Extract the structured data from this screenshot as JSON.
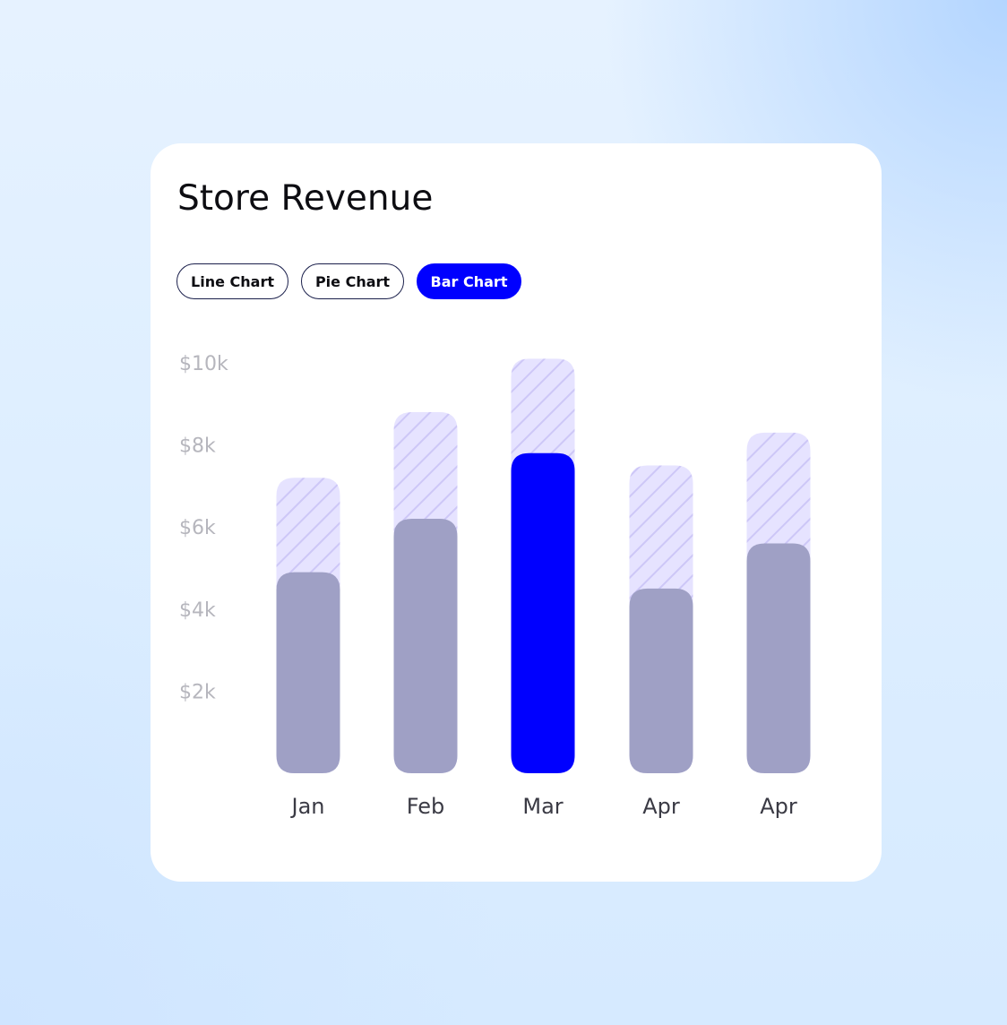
{
  "card": {
    "title": "Store Revenue"
  },
  "tabs": [
    {
      "label": "Line Chart",
      "active": false
    },
    {
      "label": "Pie Chart",
      "active": false
    },
    {
      "label": "Bar Chart",
      "active": true
    }
  ],
  "colors": {
    "accent": "#0000ff",
    "bar": "#9fa0c5",
    "target_fill": "#e6e3ff",
    "target_hatch": "#cdc7f7",
    "axis_text": "#b6b6bd",
    "label_text": "#3a3a44"
  },
  "chart_data": {
    "type": "bar",
    "title": "",
    "xlabel": "",
    "ylabel": "",
    "categories": [
      "Jan",
      "Feb",
      "Mar",
      "Apr",
      "Apr"
    ],
    "y_ticks": [
      {
        "value": 10000,
        "label": "$10k"
      },
      {
        "value": 8000,
        "label": "$8k"
      },
      {
        "value": 6000,
        "label": "$6k"
      },
      {
        "value": 4000,
        "label": "$4k"
      },
      {
        "value": 2000,
        "label": "$2k"
      }
    ],
    "ylim": [
      0,
      10000
    ],
    "grid": false,
    "highlight_index": 2,
    "series": [
      {
        "values": [
          4900,
          6200,
          7800,
          4500,
          5600
        ]
      },
      {
        "values": [
          7200,
          8800,
          10100,
          7500,
          8300
        ]
      }
    ]
  }
}
